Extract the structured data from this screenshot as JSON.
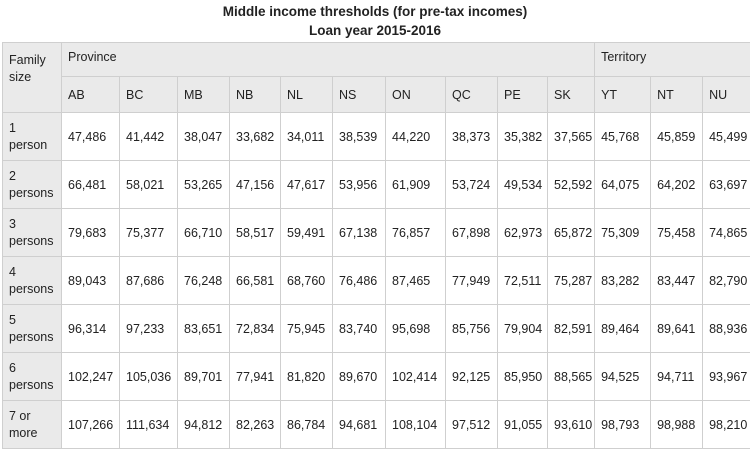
{
  "caption": {
    "line1": "Middle income thresholds (for pre-tax incomes)",
    "line2": "Loan year 2015-2016"
  },
  "table": {
    "family_header": "Family size",
    "province_label": "Province",
    "territory_label": "Territory",
    "province_codes": [
      "AB",
      "BC",
      "MB",
      "NB",
      "NL",
      "NS",
      "ON",
      "QC",
      "PE",
      "SK"
    ],
    "territory_codes": [
      "YT",
      "NT",
      "NU"
    ],
    "rows": [
      {
        "size": "1 person",
        "values": [
          "47,486",
          "41,442",
          "38,047",
          "33,682",
          "34,011",
          "38,539",
          "44,220",
          "38,373",
          "35,382",
          "37,565",
          "45,768",
          "45,859",
          "45,499"
        ]
      },
      {
        "size": "2 persons",
        "values": [
          "66,481",
          "58,021",
          "53,265",
          "47,156",
          "47,617",
          "53,956",
          "61,909",
          "53,724",
          "49,534",
          "52,592",
          "64,075",
          "64,202",
          "63,697"
        ]
      },
      {
        "size": "3 persons",
        "values": [
          "79,683",
          "75,377",
          "66,710",
          "58,517",
          "59,491",
          "67,138",
          "76,857",
          "67,898",
          "62,973",
          "65,872",
          "75,309",
          "75,458",
          "74,865"
        ]
      },
      {
        "size": "4 persons",
        "values": [
          "89,043",
          "87,686",
          "76,248",
          "66,581",
          "68,760",
          "76,486",
          "87,465",
          "77,949",
          "72,511",
          "75,287",
          "83,282",
          "83,447",
          "82,790"
        ]
      },
      {
        "size": "5 persons",
        "values": [
          "96,314",
          "97,233",
          "83,651",
          "72,834",
          "75,945",
          "83,740",
          "95,698",
          "85,756",
          "79,904",
          "82,591",
          "89,464",
          "89,641",
          "88,936"
        ]
      },
      {
        "size": "6 persons",
        "values": [
          "102,247",
          "105,036",
          "89,701",
          "77,941",
          "81,820",
          "89,670",
          "102,414",
          "92,125",
          "85,950",
          "88,565",
          "94,525",
          "94,711",
          "93,967"
        ]
      },
      {
        "size": "7 or more",
        "values": [
          "107,266",
          "111,634",
          "94,812",
          "82,263",
          "86,784",
          "94,681",
          "108,104",
          "97,512",
          "91,055",
          "93,610",
          "98,793",
          "98,988",
          "98,210"
        ]
      }
    ]
  }
}
